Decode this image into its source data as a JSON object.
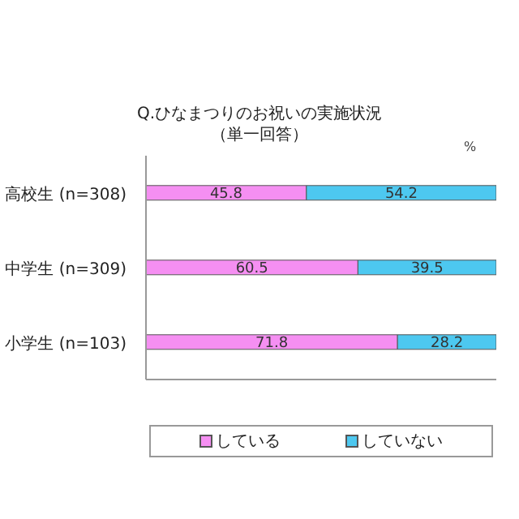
{
  "chart_data": {
    "type": "bar",
    "orientation": "horizontal",
    "stacked": true,
    "title": "Q.ひなまつりのお祝いの実施状況",
    "subtitle": "（単一回答）",
    "annotations": [
      "%"
    ],
    "categories": [
      "高校生 (n=308)",
      "中学生 (n=309)",
      "小学生 (n=103)"
    ],
    "series": [
      {
        "name": "している",
        "color": "#f58ff2",
        "values": [
          45.8,
          60.5,
          71.8
        ]
      },
      {
        "name": "していない",
        "color": "#4dc8f0",
        "values": [
          54.2,
          39.5,
          28.2
        ]
      }
    ],
    "xlim": [
      0,
      100
    ],
    "tick_labels": "y",
    "legend": "bottom",
    "data_labels": true
  }
}
